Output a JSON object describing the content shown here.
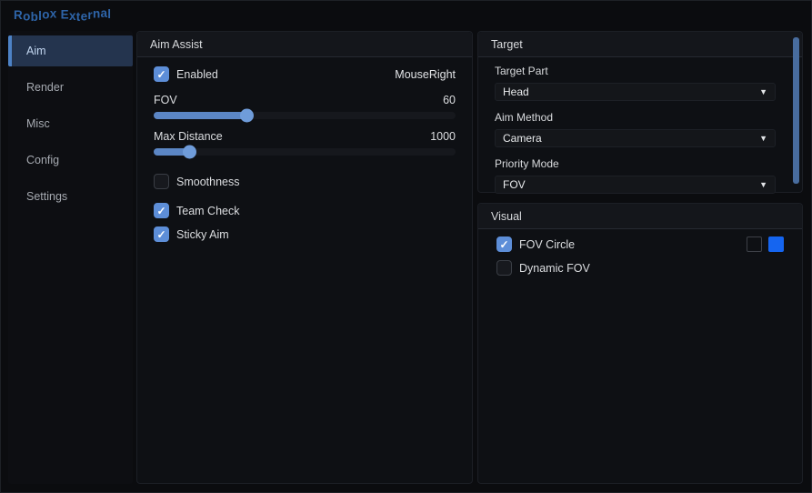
{
  "app": {
    "title": "Roblox External"
  },
  "icons": {
    "dropdown_arrow": "▼",
    "check": "✓"
  },
  "colors": {
    "accent_checkbox": "#5d8ed8",
    "slider_fill": "#5b86c5",
    "swatch_blue": "#1565f0",
    "title_blue": "#2e64a8",
    "sidebar_active_bg": "#24344e"
  },
  "sidebar": {
    "items": [
      {
        "label": "Aim",
        "active": true
      },
      {
        "label": "Render",
        "active": false
      },
      {
        "label": "Misc",
        "active": false
      },
      {
        "label": "Config",
        "active": false
      },
      {
        "label": "Settings",
        "active": false
      }
    ]
  },
  "aim_assist": {
    "title": "Aim Assist",
    "enabled": {
      "label": "Enabled",
      "checked": true,
      "keybind": "MouseRight"
    },
    "sliders": [
      {
        "label": "FOV",
        "value": 60,
        "percent": 31
      },
      {
        "label": "Max Distance",
        "value": 1000,
        "percent": 12
      }
    ],
    "checkboxes": [
      {
        "label": "Smoothness",
        "checked": false
      },
      {
        "label": "Team Check",
        "checked": true
      },
      {
        "label": "Sticky Aim",
        "checked": true
      }
    ]
  },
  "target": {
    "title": "Target",
    "dropdowns": [
      {
        "label": "Target Part",
        "value": "Head"
      },
      {
        "label": "Aim Method",
        "value": "Camera"
      },
      {
        "label": "Priority Mode",
        "value": "FOV"
      }
    ]
  },
  "visual": {
    "title": "Visual",
    "rows": [
      {
        "label": "FOV Circle",
        "checked": true,
        "has_swatches": true,
        "swatch_color": "#1565f0"
      },
      {
        "label": "Dynamic FOV",
        "checked": false,
        "has_swatches": false
      }
    ]
  }
}
